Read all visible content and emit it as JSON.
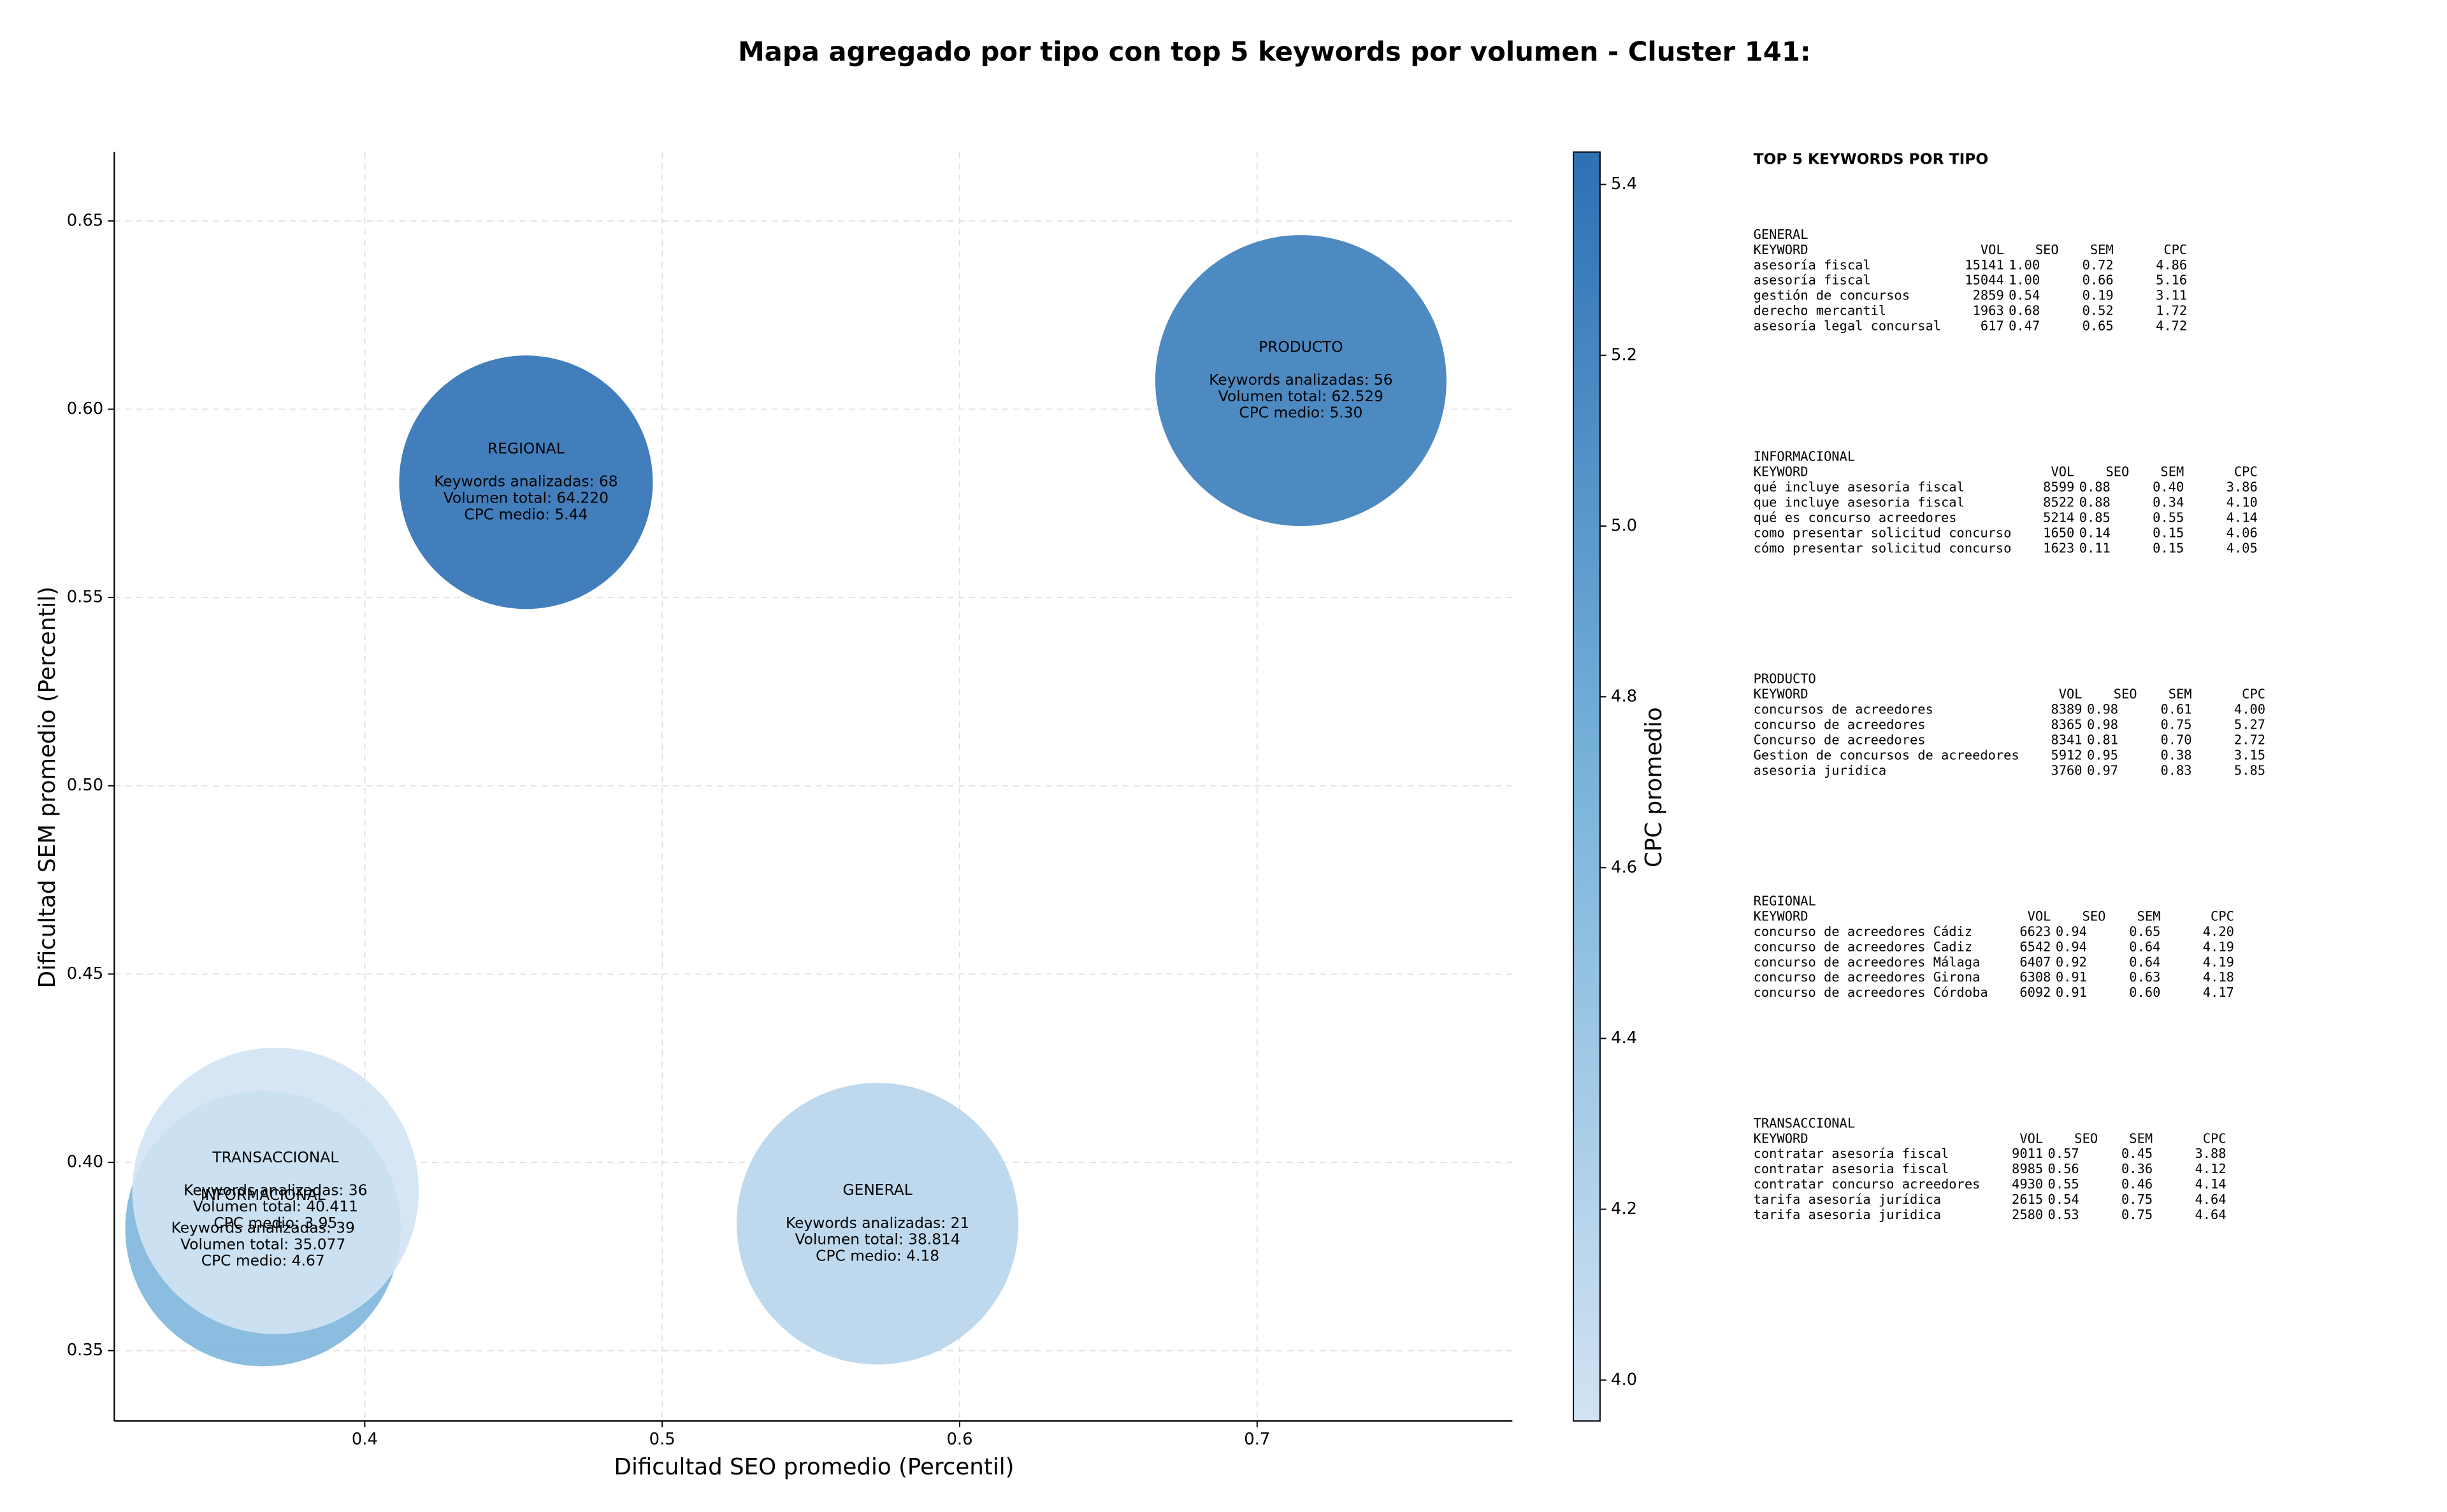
{
  "chart_data": {
    "type": "scatter",
    "title": "Mapa agregado por tipo con top 5 keywords por volumen - Cluster 141:",
    "x_label": "Dificultad SEO promedio (Percentil)",
    "y_label": "Dificultad SEM promedio (Percentil)",
    "colorbar_label": "CPC promedio",
    "labels": [
      "GENERAL",
      "INFORMACIONAL",
      "PRODUCTO",
      "REGIONAL",
      "TRANSACCIONAL"
    ],
    "x": [
      0.5724,
      0.3658,
      0.7147,
      0.4542,
      0.37
    ],
    "y": [
      0.3837,
      0.3824,
      0.6076,
      0.5806,
      0.3924
    ],
    "sizes": [
      8100,
      7744,
      8649,
      6561,
      8372
    ],
    "color_values": [
      4.18,
      4.67,
      5.3,
      5.44,
      3.95
    ],
    "annotations": [
      [
        "Keywords analizadas: 21",
        "Volumen total: 38.814",
        "CPC medio: 4.18"
      ],
      [
        "Keywords analizadas: 39",
        "Volumen total: 35.077",
        "CPC medio: 4.67"
      ],
      [
        "Keywords analizadas: 56",
        "Volumen total: 62.529",
        "CPC medio: 5.30"
      ],
      [
        "Keywords analizadas: 68",
        "Volumen total: 64.220",
        "CPC medio: 5.44"
      ],
      [
        "Keywords analizadas: 36",
        "Volumen total: 40.411",
        "CPC medio: 3.95"
      ]
    ],
    "colormap": [
      "#d2e3f3",
      "#7ab4db",
      "#2d70b4"
    ],
    "opacity": 0.9,
    "xlim": [
      0.3158,
      0.7858
    ],
    "ylim": [
      0.3313,
      0.6683
    ],
    "clim": [
      3.952,
      5.438
    ],
    "xticks": [
      {
        "value": 0.4,
        "label": "0.4"
      },
      0.5,
      0.6,
      0.7
    ],
    "yticks": [
      0.35,
      {
        "value": 0.4,
        "label": "0.40"
      },
      0.45,
      {
        "value": 0.5,
        "label": "0.50"
      },
      0.55,
      {
        "value": 0.6,
        "label": "0.60"
      },
      0.65
    ],
    "cticks": [
      {
        "value": 4,
        "label": "4.0"
      },
      4.2,
      4.4,
      4.6,
      4.8,
      {
        "value": 5,
        "label": "5.0"
      },
      5.2,
      5.4
    ],
    "grid": true
  },
  "panel": {
    "title": "TOP 5 KEYWORDS POR TIPO",
    "columns": [
      "KEYWORD",
      "VOL",
      "SEO",
      "SEM",
      "CPC"
    ],
    "groups": [
      {
        "name": "GENERAL",
        "rows": [
          [
            "asesoría fiscal",
            "15141",
            "1.00",
            "0.72",
            "4.86"
          ],
          [
            "asesoría fiscal",
            "15044",
            "1.00",
            "0.66",
            "5.16"
          ],
          [
            "gestión de concursos",
            "2859",
            "0.54",
            "0.19",
            "3.11"
          ],
          [
            "derecho mercantil",
            "1963",
            "0.68",
            "0.52",
            "1.72"
          ],
          [
            "asesoría legal concursal",
            "617",
            "0.47",
            "0.65",
            "4.72"
          ]
        ]
      },
      {
        "name": "INFORMACIONAL",
        "rows": [
          [
            "qué incluye asesoría fiscal",
            "8599",
            "0.88",
            "0.40",
            "3.86"
          ],
          [
            "que incluye asesoria fiscal",
            "8522",
            "0.88",
            "0.34",
            "4.10"
          ],
          [
            "qué es concurso acreedores",
            "5214",
            "0.85",
            "0.55",
            "4.14"
          ],
          [
            "como presentar solicitud concurso",
            "1650",
            "0.14",
            "0.15",
            "4.06"
          ],
          [
            "cómo presentar solicitud concurso",
            "1623",
            "0.11",
            "0.15",
            "4.05"
          ]
        ]
      },
      {
        "name": "PRODUCTO",
        "rows": [
          [
            "concursos de acreedores",
            "8389",
            "0.98",
            "0.61",
            "4.00"
          ],
          [
            "concurso de acreedores",
            "8365",
            "0.98",
            "0.75",
            "5.27"
          ],
          [
            "Concurso de acreedores",
            "8341",
            "0.81",
            "0.70",
            "2.72"
          ],
          [
            "Gestion de concursos de acreedores",
            "5912",
            "0.95",
            "0.38",
            "3.15"
          ],
          [
            "asesoria juridica",
            "3760",
            "0.97",
            "0.83",
            "5.85"
          ]
        ]
      },
      {
        "name": "REGIONAL",
        "rows": [
          [
            "concurso de acreedores Cádiz",
            "6623",
            "0.94",
            "0.65",
            "4.20"
          ],
          [
            "concurso de acreedores Cadiz",
            "6542",
            "0.94",
            "0.64",
            "4.19"
          ],
          [
            "concurso de acreedores Málaga",
            "6407",
            "0.92",
            "0.64",
            "4.19"
          ],
          [
            "concurso de acreedores Girona",
            "6308",
            "0.91",
            "0.63",
            "4.18"
          ],
          [
            "concurso de acreedores Córdoba",
            "6092",
            "0.91",
            "0.60",
            "4.17"
          ]
        ]
      },
      {
        "name": "TRANSACCIONAL",
        "rows": [
          [
            "contratar asesoría fiscal",
            "9011",
            "0.57",
            "0.45",
            "3.88"
          ],
          [
            "contratar asesoria fiscal",
            "8985",
            "0.56",
            "0.36",
            "4.12"
          ],
          [
            "contratar concurso acreedores",
            "4930",
            "0.55",
            "0.46",
            "4.14"
          ],
          [
            "tarifa asesoría jurídica",
            "2615",
            "0.54",
            "0.75",
            "4.64"
          ],
          [
            "tarifa asesoria juridica",
            "2580",
            "0.53",
            "0.75",
            "4.64"
          ]
        ]
      }
    ]
  }
}
